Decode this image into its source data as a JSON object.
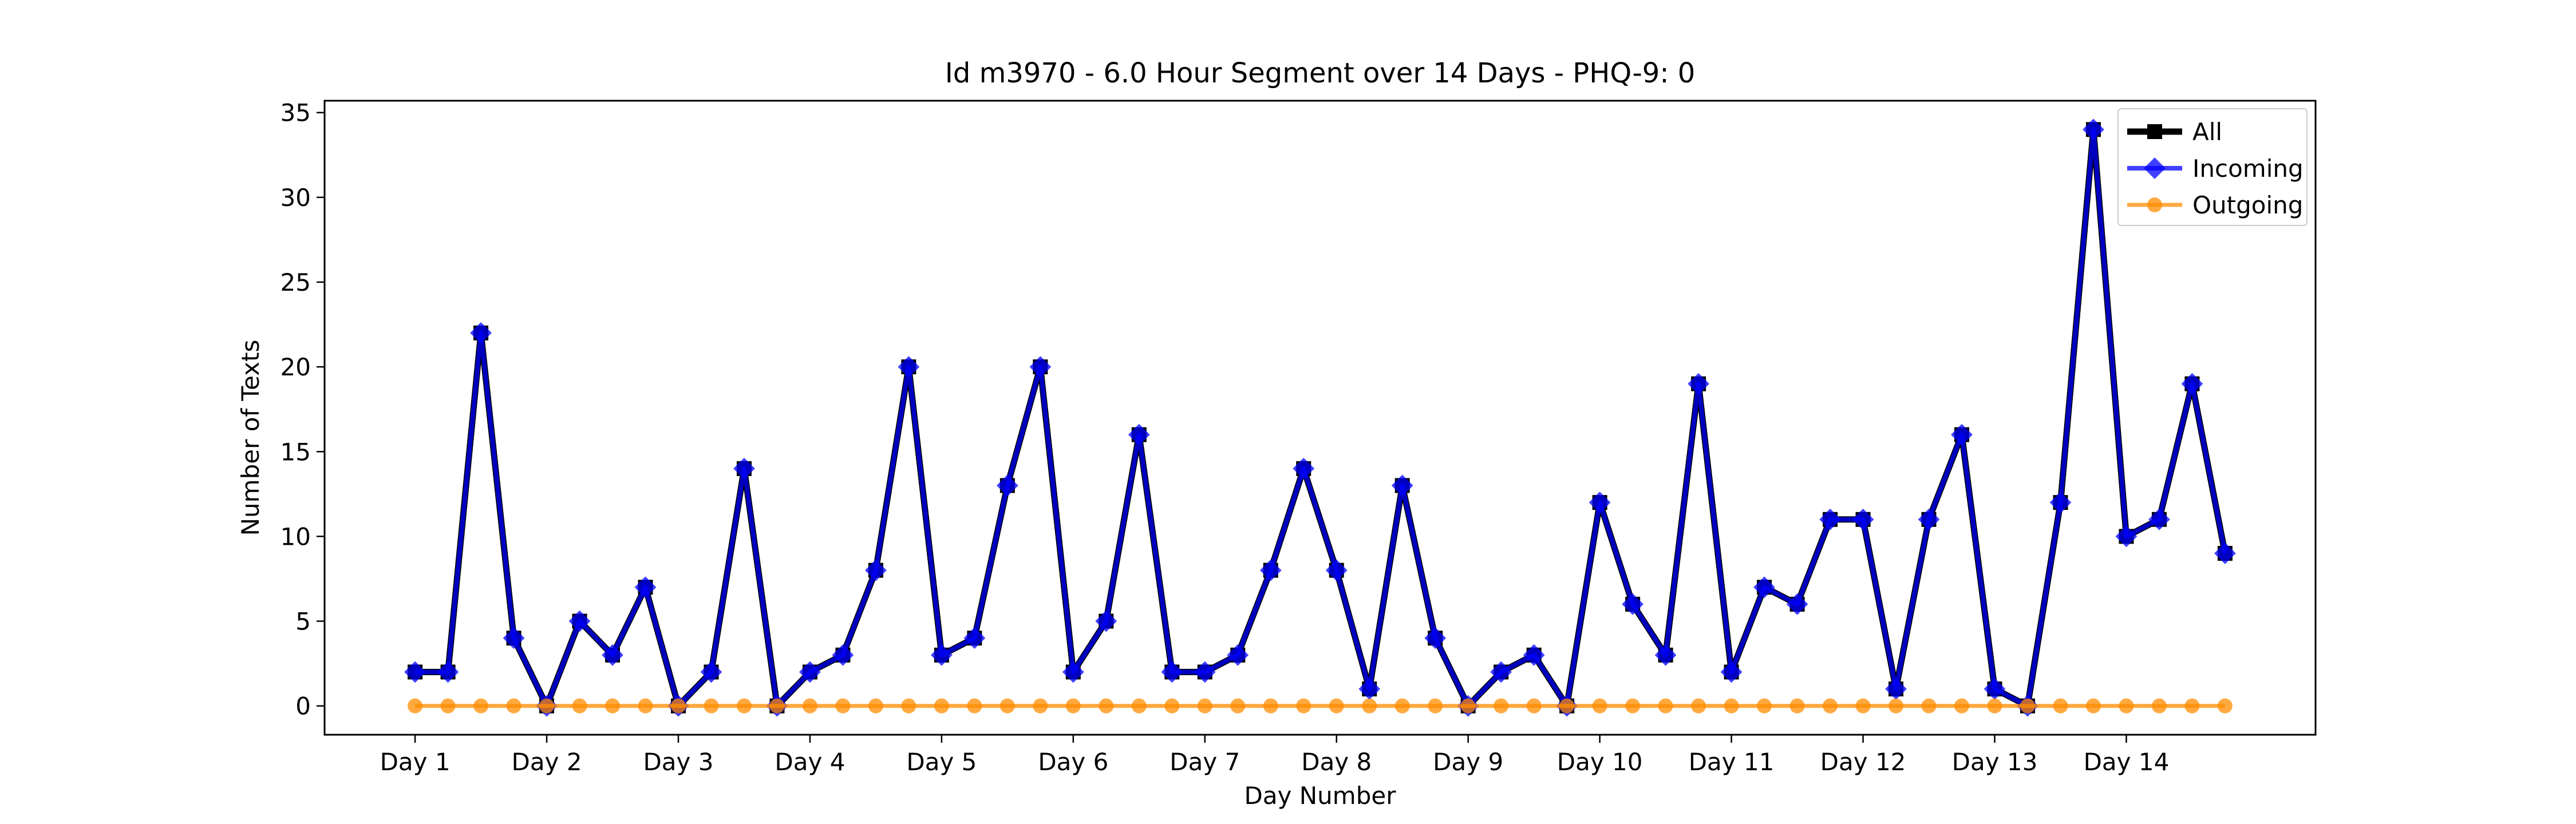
{
  "chart_data": {
    "type": "line",
    "title": "Id m3970 - 6.0 Hour Segment over 14 Days - PHQ-9: 0",
    "xlabel": "Day Number",
    "ylabel": "Number of Texts",
    "x_tick_labels": [
      "Day 1",
      "Day 2",
      "Day 3",
      "Day 4",
      "Day 5",
      "Day 6",
      "Day 7",
      "Day 8",
      "Day 9",
      "Day 10",
      "Day 11",
      "Day 12",
      "Day 13",
      "Day 14"
    ],
    "x_ticks": [
      0,
      4,
      8,
      12,
      16,
      20,
      24,
      28,
      32,
      36,
      40,
      44,
      48,
      52
    ],
    "y_ticks": [
      0,
      5,
      10,
      15,
      20,
      25,
      30,
      35
    ],
    "xlim": [
      -2.75,
      57.75
    ],
    "ylim": [
      -1.7,
      35.7
    ],
    "grid": false,
    "legend_position": "top-right",
    "series": [
      {
        "name": "All",
        "color": "#000000",
        "marker": "square",
        "values": [
          2,
          2,
          22,
          4,
          0,
          5,
          3,
          7,
          0,
          2,
          14,
          0,
          2,
          3,
          8,
          20,
          3,
          4,
          13,
          20,
          2,
          5,
          16,
          2,
          2,
          3,
          8,
          14,
          8,
          1,
          13,
          4,
          0,
          2,
          3,
          0,
          12,
          6,
          3,
          19,
          2,
          7,
          6,
          11,
          11,
          1,
          11,
          16,
          1,
          0,
          12,
          34,
          10,
          11,
          19,
          9
        ]
      },
      {
        "name": "Incoming",
        "color": "#0000ff",
        "marker": "diamond",
        "values": [
          2,
          2,
          22,
          4,
          0,
          5,
          3,
          7,
          0,
          2,
          14,
          0,
          2,
          3,
          8,
          20,
          3,
          4,
          13,
          20,
          2,
          5,
          16,
          2,
          2,
          3,
          8,
          14,
          8,
          1,
          13,
          4,
          0,
          2,
          3,
          0,
          12,
          6,
          3,
          19,
          2,
          7,
          6,
          11,
          11,
          1,
          11,
          16,
          1,
          0,
          12,
          34,
          10,
          11,
          19,
          9
        ]
      },
      {
        "name": "Outgoing",
        "color": "#ff8c00",
        "marker": "circle",
        "values": [
          0,
          0,
          0,
          0,
          0,
          0,
          0,
          0,
          0,
          0,
          0,
          0,
          0,
          0,
          0,
          0,
          0,
          0,
          0,
          0,
          0,
          0,
          0,
          0,
          0,
          0,
          0,
          0,
          0,
          0,
          0,
          0,
          0,
          0,
          0,
          0,
          0,
          0,
          0,
          0,
          0,
          0,
          0,
          0,
          0,
          0,
          0,
          0,
          0,
          0,
          0,
          0,
          0,
          0,
          0,
          0
        ]
      }
    ]
  }
}
